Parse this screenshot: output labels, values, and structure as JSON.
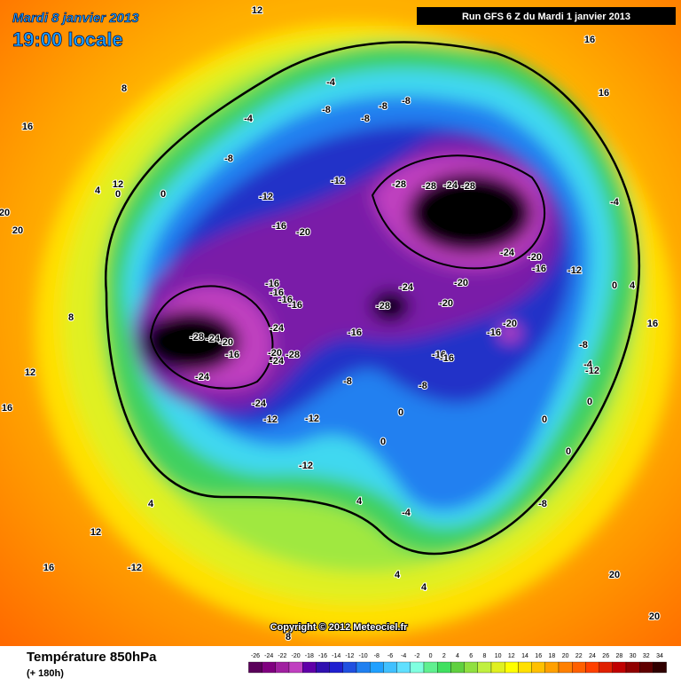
{
  "header": {
    "date": "Mardi 8 janvier 2013",
    "time": "19:00 locale",
    "run": "Run GFS 6 Z du Mardi 1 janvier 2013"
  },
  "copyright": "Copyright © 2012 Meteociel.fr",
  "footer": {
    "title": "Température 850hPa",
    "lead": "(+ 180h)"
  },
  "colorbar": {
    "labels": [
      -26,
      -24,
      -22,
      -20,
      -18,
      -16,
      -14,
      -12,
      -10,
      -8,
      -6,
      -4,
      -2,
      0,
      2,
      4,
      6,
      8,
      10,
      12,
      14,
      16,
      18,
      20,
      22,
      24,
      26,
      28,
      30,
      32,
      34
    ],
    "colors": [
      "#5a005a",
      "#800080",
      "#a020a0",
      "#c040c0",
      "#6000a8",
      "#3010b0",
      "#2020d0",
      "#2050e0",
      "#2080f0",
      "#20a0ff",
      "#40c0ff",
      "#60e0ff",
      "#80ffe0",
      "#60f090",
      "#40e060",
      "#60d040",
      "#90e040",
      "#c0f040",
      "#e0f020",
      "#ffff00",
      "#ffe000",
      "#ffc000",
      "#ffa000",
      "#ff8000",
      "#ff6000",
      "#ff4000",
      "#e02000",
      "#c00000",
      "#900000",
      "#600000",
      "#300000"
    ]
  },
  "contour_labels": [
    -28,
    -24,
    -20,
    -16,
    -24,
    -20,
    -24,
    -28,
    -24,
    -12,
    -12,
    -16,
    -16,
    -16,
    -16,
    -24,
    -16,
    -20,
    -12,
    -12,
    -28,
    -28,
    -24,
    -28,
    -24,
    -20,
    -16,
    -12,
    -24,
    -20,
    -28,
    -20,
    -20,
    -16,
    -16,
    -16,
    -16,
    -8,
    -8,
    -4,
    -8,
    -8,
    -8,
    -8,
    -4,
    -8,
    -8,
    -12,
    -4,
    4,
    4,
    4,
    4,
    0,
    0,
    0,
    0,
    12,
    12,
    16,
    16,
    16,
    16,
    20,
    20,
    20,
    20,
    12,
    8,
    4,
    8,
    8,
    12,
    16,
    -12,
    0,
    0,
    -4,
    4,
    0,
    -4,
    -12,
    -8,
    0,
    16
  ]
}
